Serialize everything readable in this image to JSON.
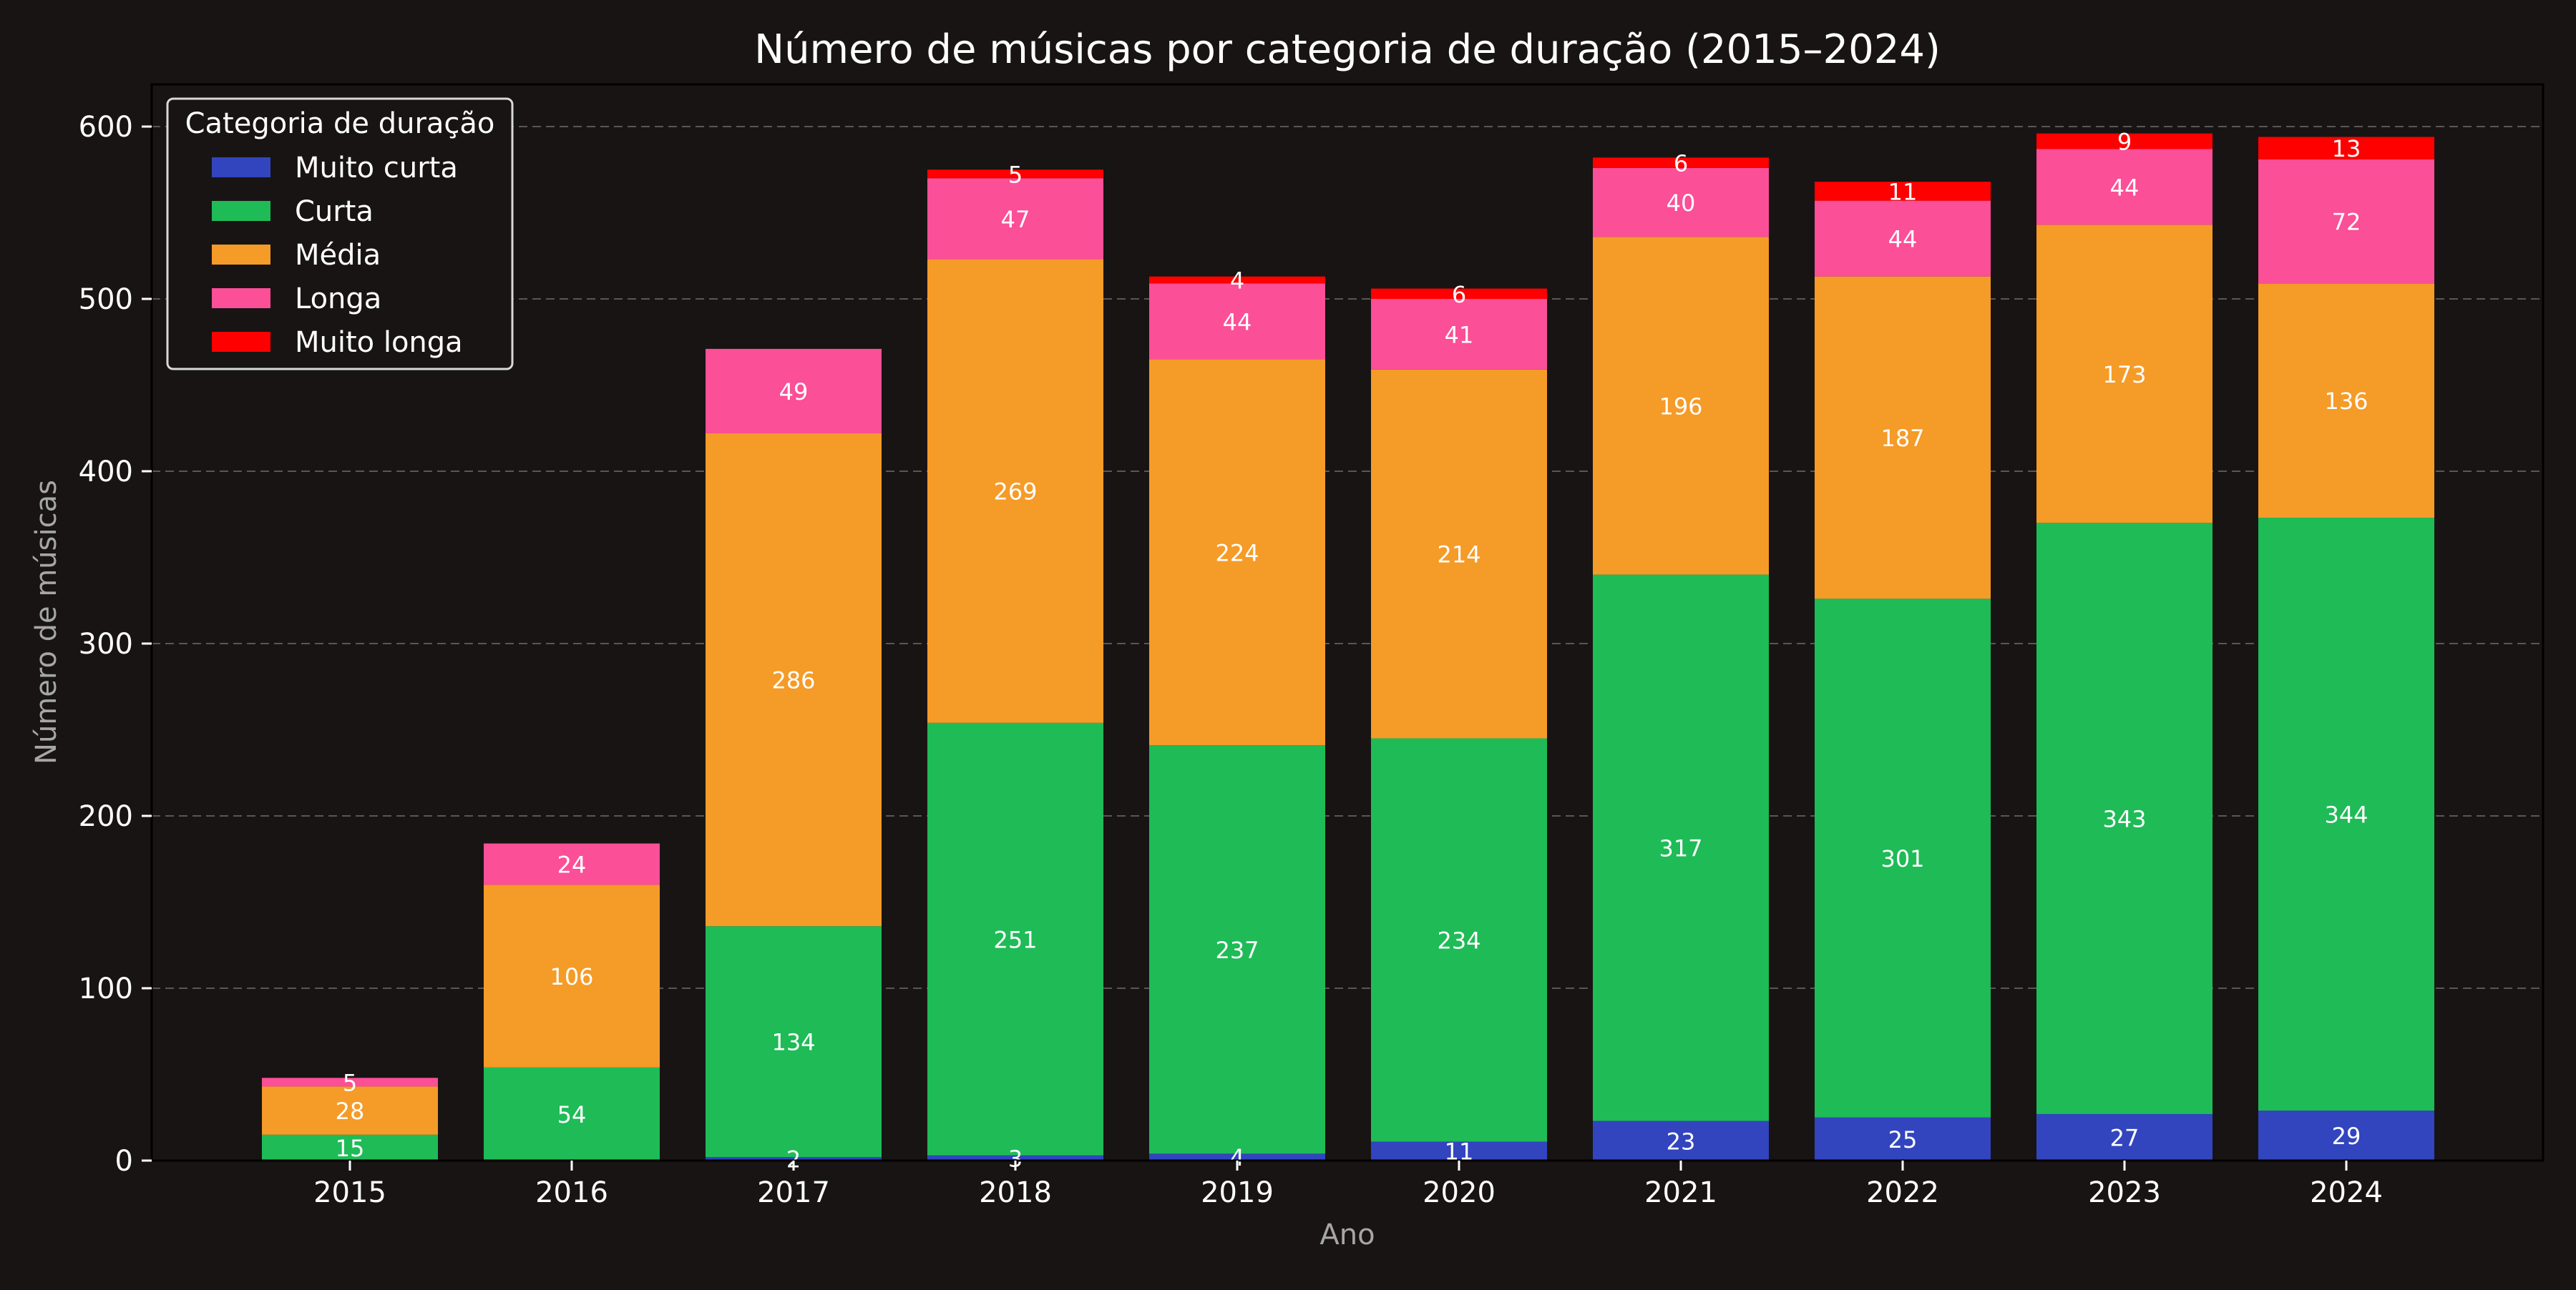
{
  "chart_data": {
    "type": "bar",
    "stacked": true,
    "title": "Número de músicas por categoria de duração (2015–2024)",
    "xlabel": "Ano",
    "ylabel": "Número de músicas",
    "categories": [
      "2015",
      "2016",
      "2017",
      "2018",
      "2019",
      "2020",
      "2021",
      "2022",
      "2023",
      "2024"
    ],
    "ylim": [
      0,
      625
    ],
    "yticks": [
      0,
      100,
      200,
      300,
      400,
      500,
      600
    ],
    "grid": "y, dashed",
    "legend": {
      "title": "Categoria de duração",
      "placement": "top-left"
    },
    "series": [
      {
        "name": "Muito curta",
        "color": "#3245be",
        "values": [
          0,
          0,
          2,
          3,
          4,
          11,
          23,
          25,
          27,
          29
        ]
      },
      {
        "name": "Curta",
        "color": "#1fbb57",
        "values": [
          15,
          54,
          134,
          251,
          237,
          234,
          317,
          301,
          343,
          344
        ]
      },
      {
        "name": "Média",
        "color": "#f59b28",
        "values": [
          28,
          106,
          286,
          269,
          224,
          214,
          196,
          187,
          173,
          136
        ]
      },
      {
        "name": "Longa",
        "color": "#fb4f97",
        "values": [
          5,
          24,
          49,
          47,
          44,
          41,
          40,
          44,
          44,
          72
        ]
      },
      {
        "name": "Muito longa",
        "color": "#ff0000",
        "values": [
          0,
          0,
          0,
          5,
          4,
          6,
          6,
          11,
          9,
          13
        ]
      }
    ]
  }
}
